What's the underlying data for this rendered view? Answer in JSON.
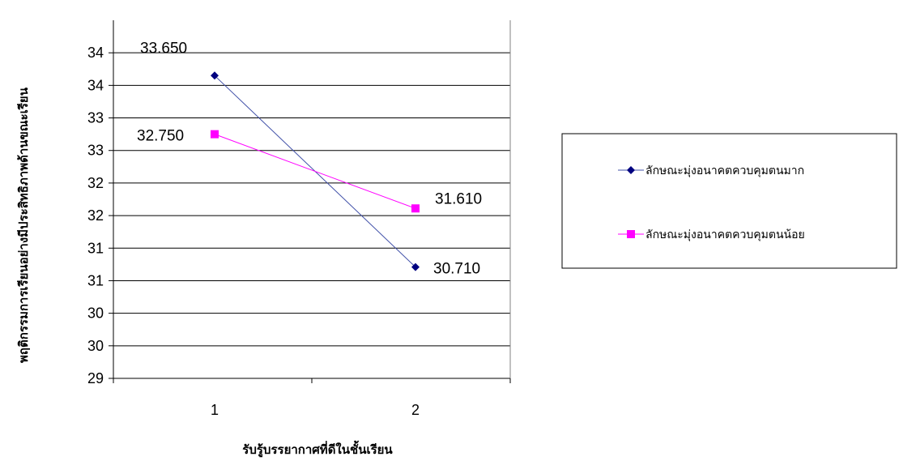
{
  "chart_data": {
    "type": "line",
    "title": "",
    "xlabel": "รับรู้บรรยากาศที่ดีในชั้นเรียน",
    "ylabel": "พฤติกรรมการเรียนอย่างมีประสิทธิภาพด้านขณะเรียน",
    "categories": [
      "1",
      "2"
    ],
    "ylim": [
      29,
      34.5
    ],
    "y_ticks": [
      {
        "value": 29,
        "label": "29"
      },
      {
        "value": 29.5,
        "label": "30"
      },
      {
        "value": 30,
        "label": "30"
      },
      {
        "value": 30.5,
        "label": "31"
      },
      {
        "value": 31,
        "label": "31"
      },
      {
        "value": 31.5,
        "label": "32"
      },
      {
        "value": 32,
        "label": "32"
      },
      {
        "value": 32.5,
        "label": "33"
      },
      {
        "value": 33,
        "label": "33"
      },
      {
        "value": 33.5,
        "label": "34"
      },
      {
        "value": 34,
        "label": "34"
      }
    ],
    "grid": true,
    "legend_position": "right",
    "series": [
      {
        "name": "ลักษณะมุ่งอนาคตควบคุมตนมาก",
        "values": [
          33.65,
          30.71
        ],
        "labels": [
          "33.650",
          "30.710"
        ],
        "color": "#4050a8",
        "marker_color": "#000080",
        "marker": "diamond"
      },
      {
        "name": "ลักษณะมุ่งอนาคตควบคุมตนน้อย",
        "values": [
          32.75,
          31.61
        ],
        "labels": [
          "32.750",
          "31.610"
        ],
        "color": "#ff00ff",
        "marker_color": "#ff00ff",
        "marker": "square"
      }
    ]
  }
}
